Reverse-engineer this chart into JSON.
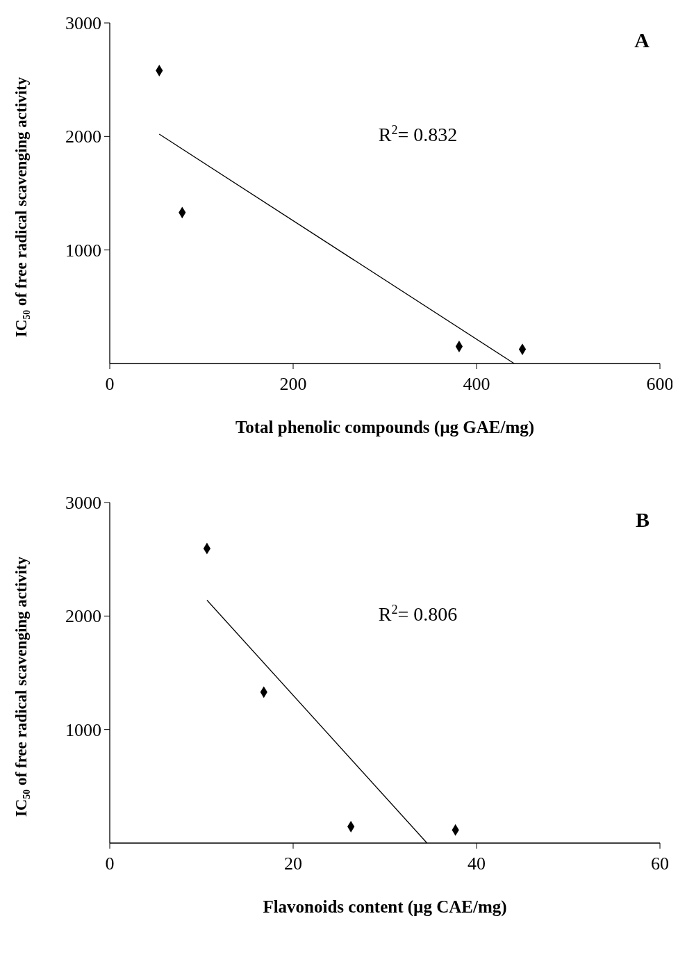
{
  "chart_data": [
    {
      "type": "scatter",
      "title": "A",
      "xlabel": "Total phenolic compounds (µg GAE/mg)",
      "ylabel": "IC₅₀ of free radical scavenging activity",
      "xlim": [
        0,
        600
      ],
      "xticks": [
        0,
        200,
        400,
        600
      ],
      "ylim": [
        0,
        3000
      ],
      "yticks": [
        1000,
        2000,
        3000
      ],
      "annotations": [
        "R$^{2}$= 0.832"
      ],
      "series": [
        {
          "marker": "diamond",
          "color": "#000000",
          "x": [
            54,
            79,
            381,
            450
          ],
          "values": [
            2580,
            1330,
            150,
            125
          ]
        },
        {
          "type": "line",
          "marker": "none",
          "color": "#000000",
          "x": [
            54,
            441
          ],
          "values": [
            2020,
            0
          ]
        }
      ]
    },
    {
      "type": "scatter",
      "title": "B",
      "xlabel": "Flavonoids content (µg CAE/mg)",
      "ylabel": "IC₅₀ of free radical scavenging activity",
      "xlim": [
        0,
        60
      ],
      "xticks": [
        0,
        20,
        40,
        60
      ],
      "ylim": [
        0,
        3000
      ],
      "yticks": [
        1000,
        2000,
        3000
      ],
      "annotations": [
        "R$^{2}$= 0.806"
      ],
      "series": [
        {
          "marker": "diamond",
          "color": "#000000",
          "x": [
            10.6,
            16.8,
            26.3,
            37.7
          ],
          "values": [
            2595,
            1330,
            145,
            115
          ]
        },
        {
          "type": "line",
          "marker": "none",
          "color": "#000000",
          "x": [
            10.6,
            34.6
          ],
          "values": [
            2140,
            0
          ]
        }
      ]
    }
  ]
}
